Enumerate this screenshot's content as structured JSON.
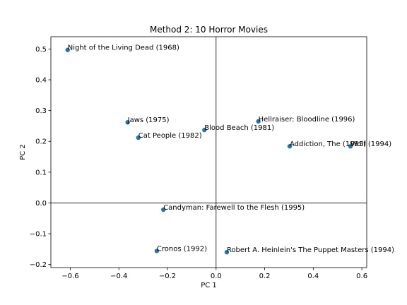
{
  "chart_data": {
    "type": "scatter",
    "title": "Method 2: 10 Horror Movies",
    "xlabel": "PC 1",
    "ylabel": "PC 2",
    "xlim": [
      -0.68,
      0.62
    ],
    "ylim": [
      -0.21,
      0.54
    ],
    "xticks": [
      -0.6,
      -0.4,
      -0.2,
      0.0,
      0.2,
      0.4,
      0.6
    ],
    "xtick_labels": [
      "−0.6",
      "−0.4",
      "−0.2",
      "0.0",
      "0.2",
      "0.4",
      "0.6"
    ],
    "yticks": [
      -0.2,
      -0.1,
      0.0,
      0.1,
      0.2,
      0.3,
      0.4,
      0.5
    ],
    "ytick_labels": [
      "−0.2",
      "−0.1",
      "0.0",
      "0.1",
      "0.2",
      "0.3",
      "0.4",
      "0.5"
    ],
    "zero_lines": true,
    "grid": false,
    "marker_color": "#1f77b4",
    "points": [
      {
        "label": "Night of the Living Dead (1968)",
        "x": -0.611,
        "y": 0.497
      },
      {
        "label": "Jaws (1975)",
        "x": -0.364,
        "y": 0.262
      },
      {
        "label": "Cat People (1982)",
        "x": -0.32,
        "y": 0.212
      },
      {
        "label": "Blood Beach (1981)",
        "x": -0.048,
        "y": 0.237
      },
      {
        "label": "Hellraiser: Bloodline (1996)",
        "x": 0.174,
        "y": 0.265
      },
      {
        "label": "Addiction, The (1995)",
        "x": 0.303,
        "y": 0.184
      },
      {
        "label": "Wolf (1994)",
        "x": 0.553,
        "y": 0.184
      },
      {
        "label": "Candyman: Farewell to the Flesh (1995)",
        "x": -0.217,
        "y": -0.022
      },
      {
        "label": "Cronos (1992)",
        "x": -0.244,
        "y": -0.156
      },
      {
        "label": "Robert A. Heinlein's The Puppet Masters (1994)",
        "x": 0.044,
        "y": -0.16
      }
    ]
  }
}
